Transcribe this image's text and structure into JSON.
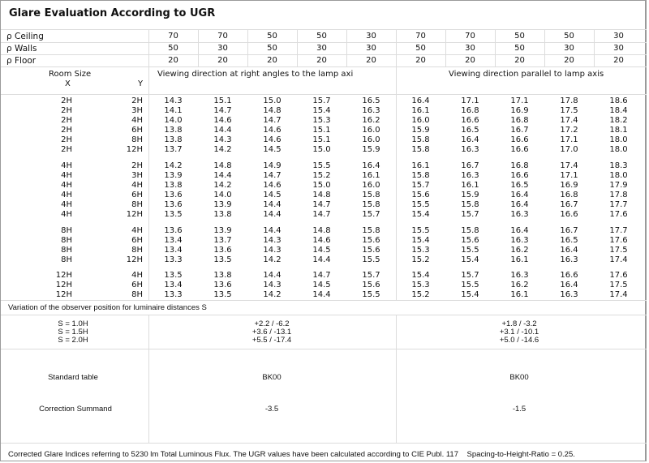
{
  "title": "Glare Evaluation According to UGR",
  "reflectance": {
    "symbol": "ρ",
    "rows": [
      {
        "label": "Ceiling",
        "values": [
          "70",
          "70",
          "50",
          "50",
          "30",
          "70",
          "70",
          "50",
          "50",
          "30"
        ]
      },
      {
        "label": "Walls",
        "values": [
          "50",
          "30",
          "50",
          "30",
          "30",
          "50",
          "30",
          "50",
          "30",
          "30"
        ]
      },
      {
        "label": "Floor",
        "values": [
          "20",
          "20",
          "20",
          "20",
          "20",
          "20",
          "20",
          "20",
          "20",
          "20"
        ]
      }
    ]
  },
  "headers": {
    "room_size": "Room Size",
    "x": "X",
    "y": "Y",
    "right_angles": "Viewing direction at right angles to the lamp axi",
    "parallel": "Viewing direction parallel to lamp axis"
  },
  "blocks": [
    {
      "rows": [
        {
          "x": "2H",
          "y": "2H",
          "v": [
            "14.3",
            "15.1",
            "15.0",
            "15.7",
            "16.5",
            "16.4",
            "17.1",
            "17.1",
            "17.8",
            "18.6"
          ]
        },
        {
          "x": "2H",
          "y": "3H",
          "v": [
            "14.1",
            "14.7",
            "14.8",
            "15.4",
            "16.3",
            "16.1",
            "16.8",
            "16.9",
            "17.5",
            "18.4"
          ]
        },
        {
          "x": "2H",
          "y": "4H",
          "v": [
            "14.0",
            "14.6",
            "14.7",
            "15.3",
            "16.2",
            "16.0",
            "16.6",
            "16.8",
            "17.4",
            "18.2"
          ]
        },
        {
          "x": "2H",
          "y": "6H",
          "v": [
            "13.8",
            "14.4",
            "14.6",
            "15.1",
            "16.0",
            "15.9",
            "16.5",
            "16.7",
            "17.2",
            "18.1"
          ]
        },
        {
          "x": "2H",
          "y": "8H",
          "v": [
            "13.8",
            "14.3",
            "14.6",
            "15.1",
            "16.0",
            "15.8",
            "16.4",
            "16.6",
            "17.1",
            "18.0"
          ]
        },
        {
          "x": "2H",
          "y": "12H",
          "v": [
            "13.7",
            "14.2",
            "14.5",
            "15.0",
            "15.9",
            "15.8",
            "16.3",
            "16.6",
            "17.0",
            "18.0"
          ]
        }
      ]
    },
    {
      "rows": [
        {
          "x": "4H",
          "y": "2H",
          "v": [
            "14.2",
            "14.8",
            "14.9",
            "15.5",
            "16.4",
            "16.1",
            "16.7",
            "16.8",
            "17.4",
            "18.3"
          ]
        },
        {
          "x": "4H",
          "y": "3H",
          "v": [
            "13.9",
            "14.4",
            "14.7",
            "15.2",
            "16.1",
            "15.8",
            "16.3",
            "16.6",
            "17.1",
            "18.0"
          ]
        },
        {
          "x": "4H",
          "y": "4H",
          "v": [
            "13.8",
            "14.2",
            "14.6",
            "15.0",
            "16.0",
            "15.7",
            "16.1",
            "16.5",
            "16.9",
            "17.9"
          ]
        },
        {
          "x": "4H",
          "y": "6H",
          "v": [
            "13.6",
            "14.0",
            "14.5",
            "14.8",
            "15.8",
            "15.6",
            "15.9",
            "16.4",
            "16.8",
            "17.8"
          ]
        },
        {
          "x": "4H",
          "y": "8H",
          "v": [
            "13.6",
            "13.9",
            "14.4",
            "14.7",
            "15.8",
            "15.5",
            "15.8",
            "16.4",
            "16.7",
            "17.7"
          ]
        },
        {
          "x": "4H",
          "y": "12H",
          "v": [
            "13.5",
            "13.8",
            "14.4",
            "14.7",
            "15.7",
            "15.4",
            "15.7",
            "16.3",
            "16.6",
            "17.6"
          ]
        }
      ]
    },
    {
      "rows": [
        {
          "x": "8H",
          "y": "4H",
          "v": [
            "13.6",
            "13.9",
            "14.4",
            "14.8",
            "15.8",
            "15.5",
            "15.8",
            "16.4",
            "16.7",
            "17.7"
          ]
        },
        {
          "x": "8H",
          "y": "6H",
          "v": [
            "13.4",
            "13.7",
            "14.3",
            "14.6",
            "15.6",
            "15.4",
            "15.6",
            "16.3",
            "16.5",
            "17.6"
          ]
        },
        {
          "x": "8H",
          "y": "8H",
          "v": [
            "13.4",
            "13.6",
            "14.3",
            "14.5",
            "15.6",
            "15.3",
            "15.5",
            "16.2",
            "16.4",
            "17.5"
          ]
        },
        {
          "x": "8H",
          "y": "12H",
          "v": [
            "13.3",
            "13.5",
            "14.2",
            "14.4",
            "15.5",
            "15.2",
            "15.4",
            "16.1",
            "16.3",
            "17.4"
          ]
        }
      ]
    },
    {
      "rows": [
        {
          "x": "12H",
          "y": "4H",
          "v": [
            "13.5",
            "13.8",
            "14.4",
            "14.7",
            "15.7",
            "15.4",
            "15.7",
            "16.3",
            "16.6",
            "17.6"
          ]
        },
        {
          "x": "12H",
          "y": "6H",
          "v": [
            "13.4",
            "13.6",
            "14.3",
            "14.5",
            "15.6",
            "15.3",
            "15.5",
            "16.2",
            "16.4",
            "17.5"
          ]
        },
        {
          "x": "12H",
          "y": "8H",
          "v": [
            "13.3",
            "13.5",
            "14.2",
            "14.4",
            "15.5",
            "15.2",
            "15.4",
            "16.1",
            "16.3",
            "17.4"
          ]
        }
      ]
    }
  ],
  "variation": {
    "title": "Variation of the observer position for luminaire distances S",
    "labels": [
      "S = 1.0H",
      "S = 1.5H",
      "S = 2.0H"
    ],
    "right_angles": [
      "+2.2 / -6.2",
      "+3.6 / -13.1",
      "+5.5 / -17.4"
    ],
    "parallel": [
      "+1.8 / -3.2",
      "+3.1 / -10.1",
      "+5.0 / -14.6"
    ]
  },
  "standard_table": {
    "label": "Standard table",
    "right_angles": "BK00",
    "parallel": "BK00"
  },
  "correction": {
    "label": "Correction Summand",
    "right_angles": "-3.5",
    "parallel": "-1.5"
  },
  "footer": "Corrected Glare Indices referring to 5230 lm Total Luminous Flux. The UGR values have been calculated according to CIE Publ. 117    Spacing-to-Height-Ratio = 0.25."
}
